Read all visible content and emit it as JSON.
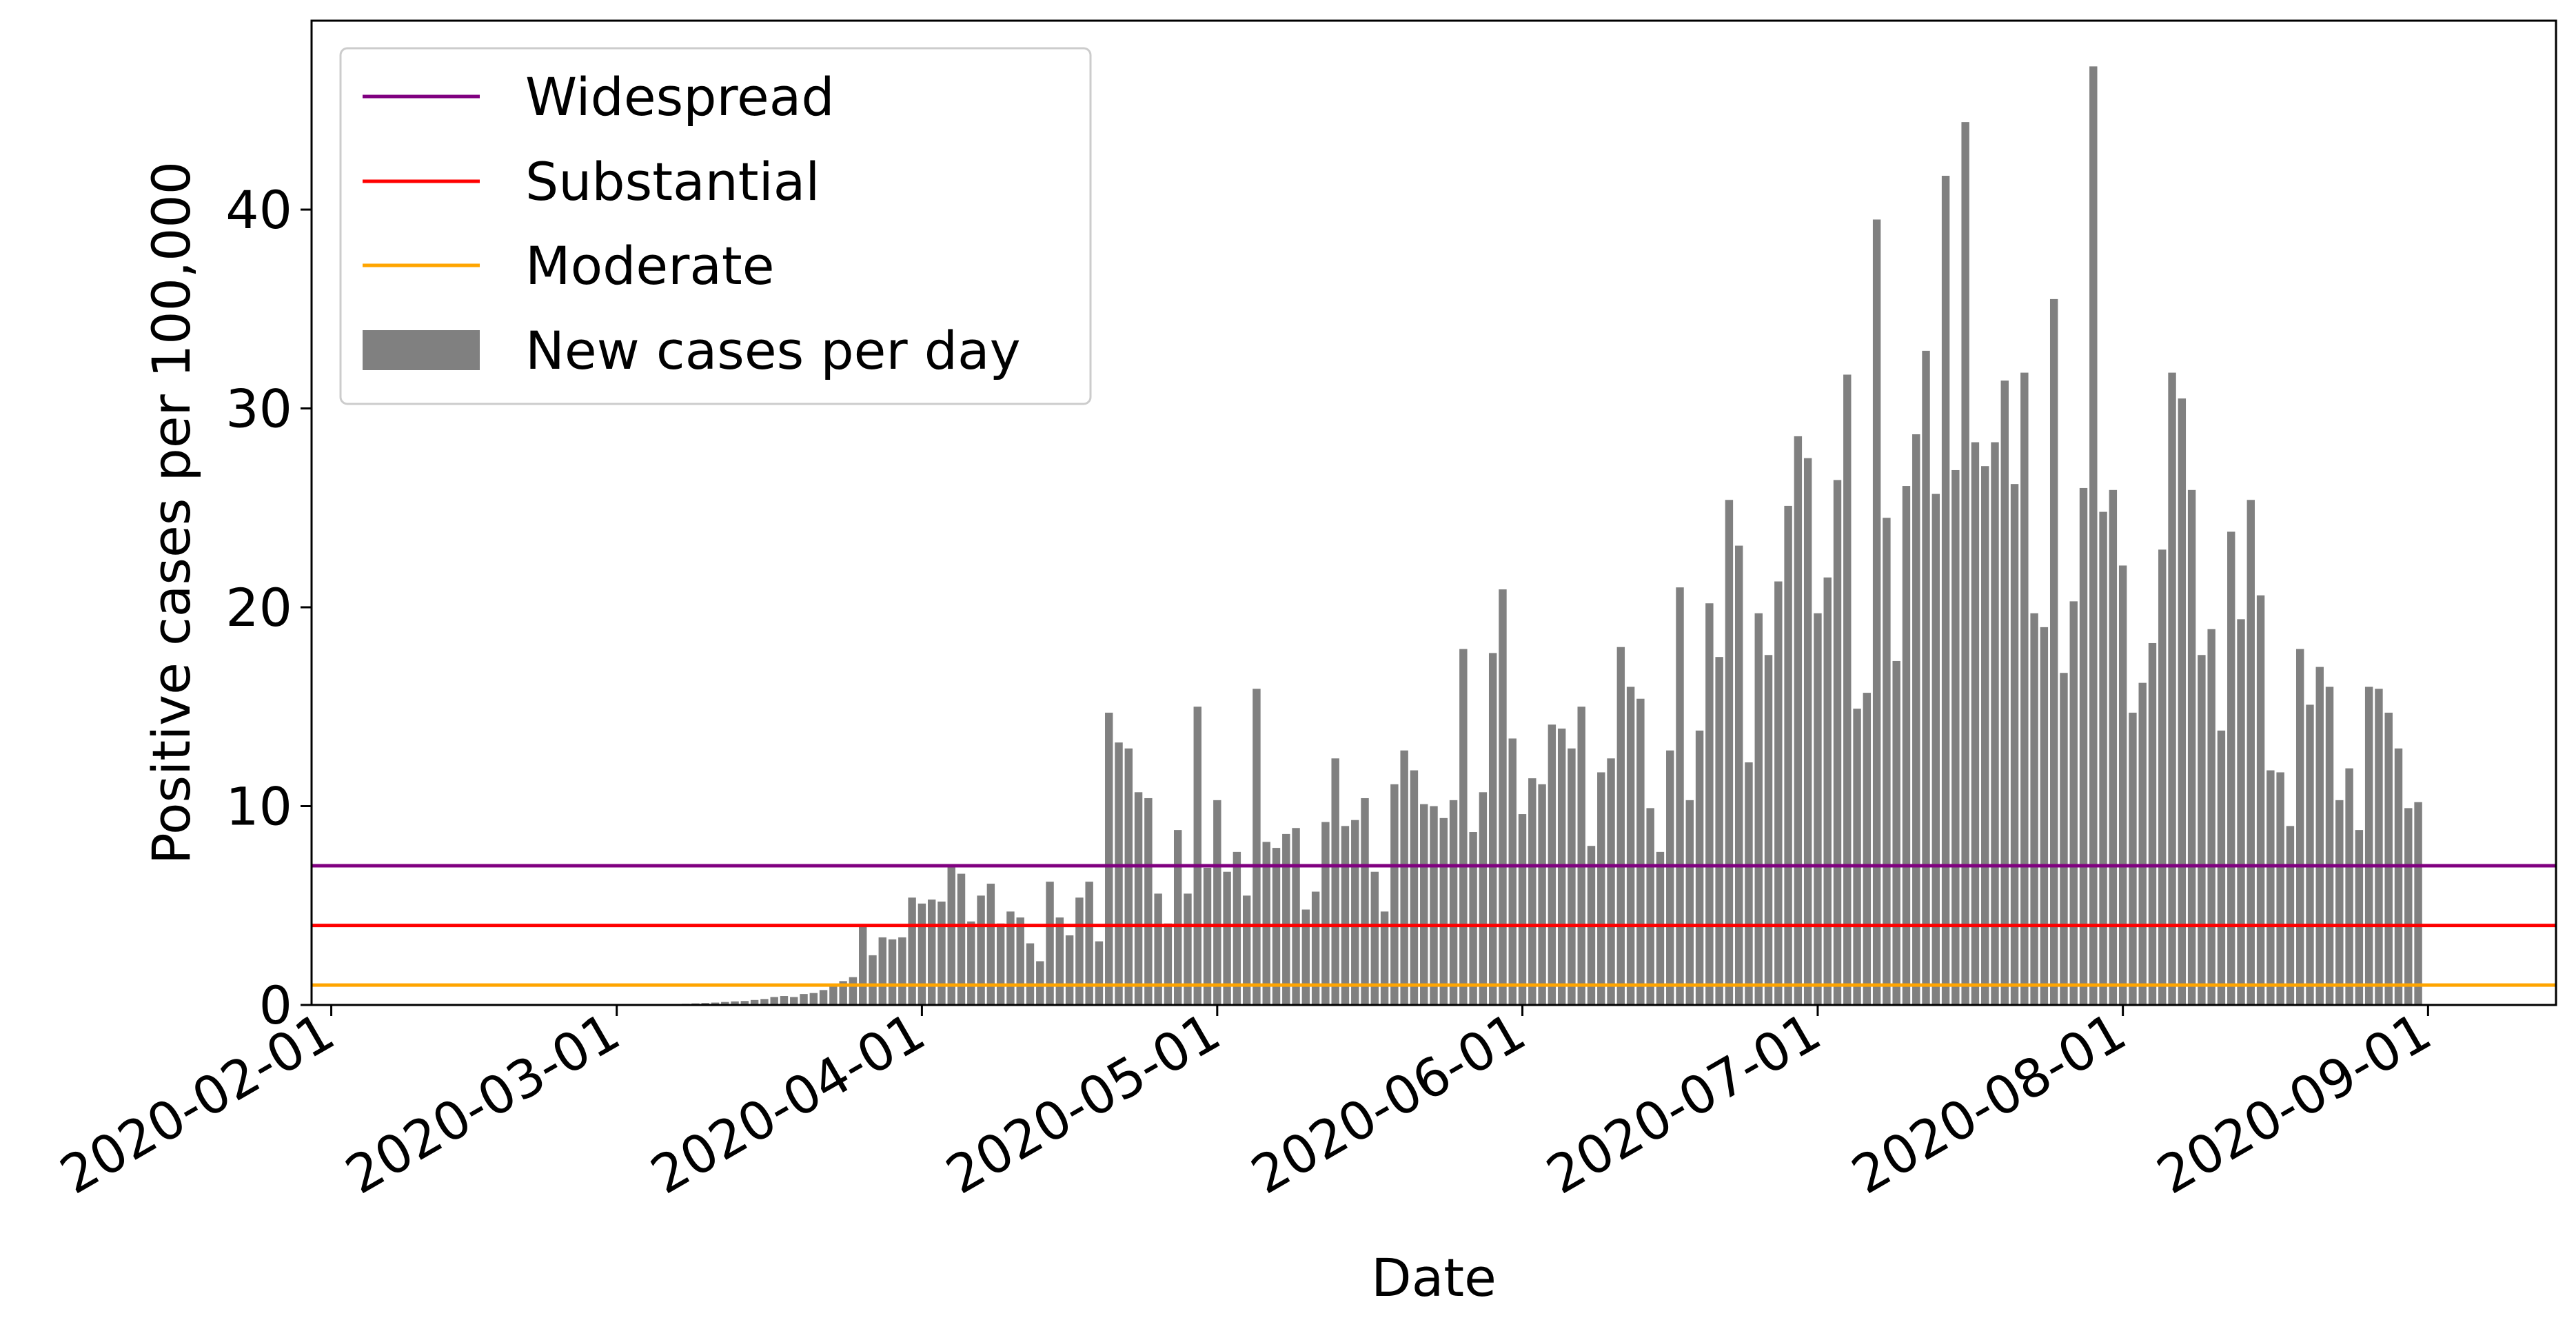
{
  "chart_data": {
    "type": "bar",
    "title": "",
    "xlabel": "Date",
    "ylabel": "Positive cases per 100,000",
    "x_type": "date",
    "xlim": [
      "2020-01-30",
      "2020-09-14"
    ],
    "ylim": [
      0,
      49.5
    ],
    "x_ticks": [
      "2020-02-01",
      "2020-03-01",
      "2020-04-01",
      "2020-05-01",
      "2020-06-01",
      "2020-07-01",
      "2020-08-01",
      "2020-09-01"
    ],
    "y_ticks": [
      0,
      10,
      20,
      30,
      40
    ],
    "grid": false,
    "legend_position": "upper-left",
    "bar_series": {
      "name": "New cases per day",
      "color": "#808080",
      "start_date": "2020-03-01",
      "values": [
        0,
        0,
        0,
        0.03,
        0.03,
        0.04,
        0.05,
        0.06,
        0.08,
        0.1,
        0.12,
        0.15,
        0.18,
        0.2,
        0.25,
        0.3,
        0.4,
        0.45,
        0.4,
        0.55,
        0.6,
        0.75,
        1.0,
        1.2,
        1.4,
        4.0,
        2.5,
        3.4,
        3.3,
        3.4,
        5.4,
        5.1,
        5.3,
        5.2,
        7.0,
        6.6,
        4.2,
        5.5,
        6.1,
        4.1,
        4.7,
        4.4,
        3.1,
        2.2,
        6.2,
        4.4,
        3.5,
        5.4,
        6.2,
        3.2,
        14.7,
        13.2,
        12.9,
        10.7,
        10.4,
        5.6,
        4.1,
        8.8,
        5.6,
        15.0,
        6.9,
        10.3,
        6.7,
        7.7,
        5.5,
        15.9,
        8.2,
        7.9,
        8.6,
        8.9,
        4.8,
        5.7,
        9.2,
        12.4,
        9.0,
        9.3,
        10.4,
        6.7,
        4.7,
        11.1,
        12.8,
        11.8,
        10.1,
        10.0,
        9.4,
        10.3,
        17.9,
        8.7,
        10.7,
        17.7,
        20.9,
        13.4,
        9.6,
        11.4,
        11.1,
        14.1,
        13.9,
        12.9,
        15.0,
        8.0,
        11.7,
        12.4,
        18.0,
        16.0,
        15.4,
        9.9,
        7.7,
        12.8,
        21.0,
        10.3,
        13.8,
        20.2,
        17.5,
        25.4,
        23.1,
        12.2,
        19.7,
        17.6,
        21.3,
        25.1,
        28.6,
        27.5,
        19.7,
        21.5,
        26.4,
        31.7,
        14.9,
        15.7,
        39.5,
        24.5,
        17.3,
        26.1,
        28.7,
        32.9,
        25.7,
        41.7,
        26.9,
        44.4,
        28.3,
        27.1,
        28.3,
        31.4,
        26.2,
        31.8,
        19.7,
        19.0,
        35.5,
        16.7,
        20.3,
        26.0,
        47.2,
        24.8,
        25.9,
        22.1,
        14.7,
        16.2,
        18.2,
        22.9,
        31.8,
        30.5,
        25.9,
        17.6,
        18.9,
        13.8,
        23.8,
        19.4,
        25.4,
        20.6,
        11.8,
        11.7,
        9.0,
        17.9,
        15.1,
        17.0,
        16.0,
        10.3,
        11.9,
        8.8,
        16.0,
        15.9,
        14.7,
        12.9,
        9.9,
        10.2
      ]
    },
    "threshold_lines": [
      {
        "name": "Widespread",
        "value": 7.0,
        "color": "#800080"
      },
      {
        "name": "Substantial",
        "value": 4.0,
        "color": "#ff0000"
      },
      {
        "name": "Moderate",
        "value": 1.0,
        "color": "#ffa500"
      }
    ]
  }
}
